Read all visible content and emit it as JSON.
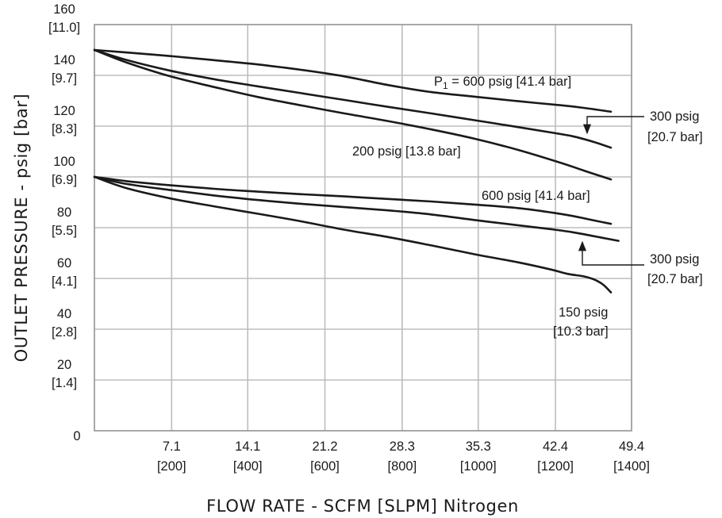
{
  "chart_data": {
    "type": "line",
    "xlabel": "FLOW RATE - SCFM [SLPM] Nitrogen",
    "ylabel": "OUTLET PRESSURE - psig [bar]",
    "xlim": [
      0,
      49.4
    ],
    "ylim": [
      0,
      160
    ],
    "grid": true,
    "x_ticks": [
      {
        "value": 7.1,
        "label": "7.1",
        "sublabel": "[200]"
      },
      {
        "value": 14.1,
        "label": "14.1",
        "sublabel": "[400]"
      },
      {
        "value": 21.2,
        "label": "21.2",
        "sublabel": "[600]"
      },
      {
        "value": 28.3,
        "label": "28.3",
        "sublabel": "[800]"
      },
      {
        "value": 35.3,
        "label": "35.3",
        "sublabel": "[1000]"
      },
      {
        "value": 42.4,
        "label": "42.4",
        "sublabel": "[1200]"
      },
      {
        "value": 49.4,
        "label": "49.4",
        "sublabel": "[1400]"
      }
    ],
    "y_ticks": [
      {
        "value": 0,
        "label": "0",
        "sublabel": ""
      },
      {
        "value": 20,
        "label": "20",
        "sublabel": "[1.4]"
      },
      {
        "value": 40,
        "label": "40",
        "sublabel": "[2.8]"
      },
      {
        "value": 60,
        "label": "60",
        "sublabel": "[4.1]"
      },
      {
        "value": 80,
        "label": "80",
        "sublabel": "[5.5]"
      },
      {
        "value": 100,
        "label": "100",
        "sublabel": "[6.9]"
      },
      {
        "value": 120,
        "label": "120",
        "sublabel": "[8.3]"
      },
      {
        "value": 140,
        "label": "140",
        "sublabel": "[9.7]"
      },
      {
        "value": 160,
        "label": "160",
        "sublabel": "[11.0]"
      }
    ],
    "series": [
      {
        "name": "P1 = 600 psig [41.4 bar]",
        "points": [
          [
            0,
            150
          ],
          [
            3,
            149
          ],
          [
            7,
            147.6
          ],
          [
            11,
            146
          ],
          [
            15,
            144.3
          ],
          [
            19,
            142.2
          ],
          [
            23,
            139.6
          ],
          [
            27,
            136.2
          ],
          [
            31,
            133.4
          ],
          [
            35,
            131.6
          ],
          [
            39,
            129.8
          ],
          [
            43,
            128.2
          ],
          [
            45,
            127.2
          ],
          [
            47.5,
            125.7
          ]
        ]
      },
      {
        "name": "300 psig [20.7 bar]",
        "points": [
          [
            0,
            150
          ],
          [
            3,
            146
          ],
          [
            7,
            141.8
          ],
          [
            11,
            138.5
          ],
          [
            15,
            135.7
          ],
          [
            19,
            133
          ],
          [
            23,
            130.3
          ],
          [
            27,
            127.6
          ],
          [
            31,
            125
          ],
          [
            35,
            122.3
          ],
          [
            39,
            119.6
          ],
          [
            42,
            117.5
          ],
          [
            44,
            116
          ],
          [
            46,
            113.7
          ],
          [
            47.5,
            111.5
          ]
        ]
      },
      {
        "name": "200 psig [13.8 bar]",
        "points": [
          [
            0,
            150
          ],
          [
            3,
            145
          ],
          [
            7,
            139.6
          ],
          [
            11,
            135.4
          ],
          [
            15,
            131.5
          ],
          [
            19,
            128.2
          ],
          [
            23,
            125
          ],
          [
            27,
            122
          ],
          [
            31,
            118.7
          ],
          [
            35,
            115
          ],
          [
            39,
            110.6
          ],
          [
            43,
            105.4
          ],
          [
            45,
            102.5
          ],
          [
            47.5,
            99
          ]
        ]
      },
      {
        "name": "600 psig [41.4 bar]",
        "points": [
          [
            0,
            100
          ],
          [
            3,
            98.3
          ],
          [
            7,
            96.7
          ],
          [
            11,
            95.3
          ],
          [
            15,
            94.2
          ],
          [
            19,
            93.2
          ],
          [
            23,
            92.3
          ],
          [
            27,
            91.3
          ],
          [
            31,
            90.3
          ],
          [
            35,
            89.1
          ],
          [
            39,
            87.7
          ],
          [
            42,
            86
          ],
          [
            44,
            84.6
          ],
          [
            46,
            82.8
          ],
          [
            47.5,
            81.5
          ]
        ]
      },
      {
        "name": "300 psig [20.7 bar]",
        "points": [
          [
            0,
            100
          ],
          [
            3,
            97.2
          ],
          [
            7,
            94.8
          ],
          [
            11,
            92.7
          ],
          [
            15,
            90.9
          ],
          [
            19,
            89.4
          ],
          [
            23,
            88.1
          ],
          [
            27,
            86.8
          ],
          [
            31,
            85.2
          ],
          [
            35,
            83
          ],
          [
            39,
            80.9
          ],
          [
            42,
            79.4
          ],
          [
            44,
            78.2
          ],
          [
            46,
            76.6
          ],
          [
            48.2,
            74.8
          ]
        ]
      },
      {
        "name": "150 psig [10.3 bar]",
        "points": [
          [
            0,
            100
          ],
          [
            3,
            95.5
          ],
          [
            7,
            91.5
          ],
          [
            11,
            88.4
          ],
          [
            15,
            85.5
          ],
          [
            19,
            82.5
          ],
          [
            23,
            79.2
          ],
          [
            27,
            76.3
          ],
          [
            31,
            73
          ],
          [
            35,
            69.5
          ],
          [
            39,
            66.3
          ],
          [
            42,
            63.5
          ],
          [
            43.5,
            61.8
          ],
          [
            45,
            60.8
          ],
          [
            46,
            59.5
          ],
          [
            46.8,
            57.5
          ],
          [
            47.5,
            54.5
          ]
        ]
      }
    ],
    "curve_labels": {
      "p1_prefix": "P",
      "p1_subscript": "1",
      "p1_rest": " = 600 psig [41.4 bar]",
      "upper_300_psig": "300 psig",
      "upper_300_bar": "[20.7 bar]",
      "upper_200": "200 psig [13.8 bar]",
      "lower_600": "600 psig [41.4 bar]",
      "lower_300_psig": "300 psig",
      "lower_300_bar": "[20.7 bar]",
      "lower_150_psig": "150 psig",
      "lower_150_bar": "[10.3 bar]"
    }
  }
}
